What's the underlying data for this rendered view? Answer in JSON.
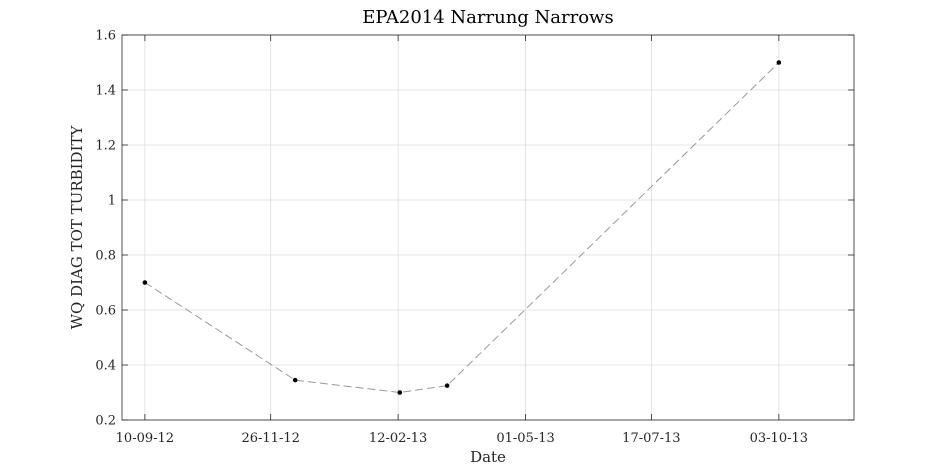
{
  "chart_data": {
    "type": "line",
    "title": "EPA2014 Narrung Narrows",
    "xlabel": "Date",
    "ylabel": "WQ DIAG TOT TURBIDITY",
    "x_type": "date",
    "date_format": "DD-MM-YY",
    "xlim": [
      "2012-08-27",
      "2013-11-18"
    ],
    "ylim": [
      0.2,
      1.6
    ],
    "x_ticks": [
      "2012-09-10",
      "2012-11-26",
      "2013-02-12",
      "2013-05-01",
      "2013-07-17",
      "2013-10-03"
    ],
    "x_tick_labels": [
      "10-09-12",
      "26-11-12",
      "12-02-13",
      "01-05-13",
      "17-07-13",
      "03-10-13"
    ],
    "y_ticks": [
      0.2,
      0.4,
      0.6,
      0.8,
      1.0,
      1.2,
      1.4,
      1.6
    ],
    "y_tick_labels": [
      "0.2",
      "0.4",
      "0.6",
      "0.8",
      "1",
      "1.2",
      "1.4",
      "1.6"
    ],
    "grid": true,
    "series": [
      {
        "line_style": "dashed",
        "line_color": "#999999",
        "marker_color": "#000000",
        "x": [
          "2012-09-10",
          "2012-12-11",
          "2013-02-13",
          "2013-03-14",
          "2013-10-03"
        ],
        "y": [
          0.7,
          0.345,
          0.3,
          0.325,
          1.5
        ]
      }
    ]
  }
}
